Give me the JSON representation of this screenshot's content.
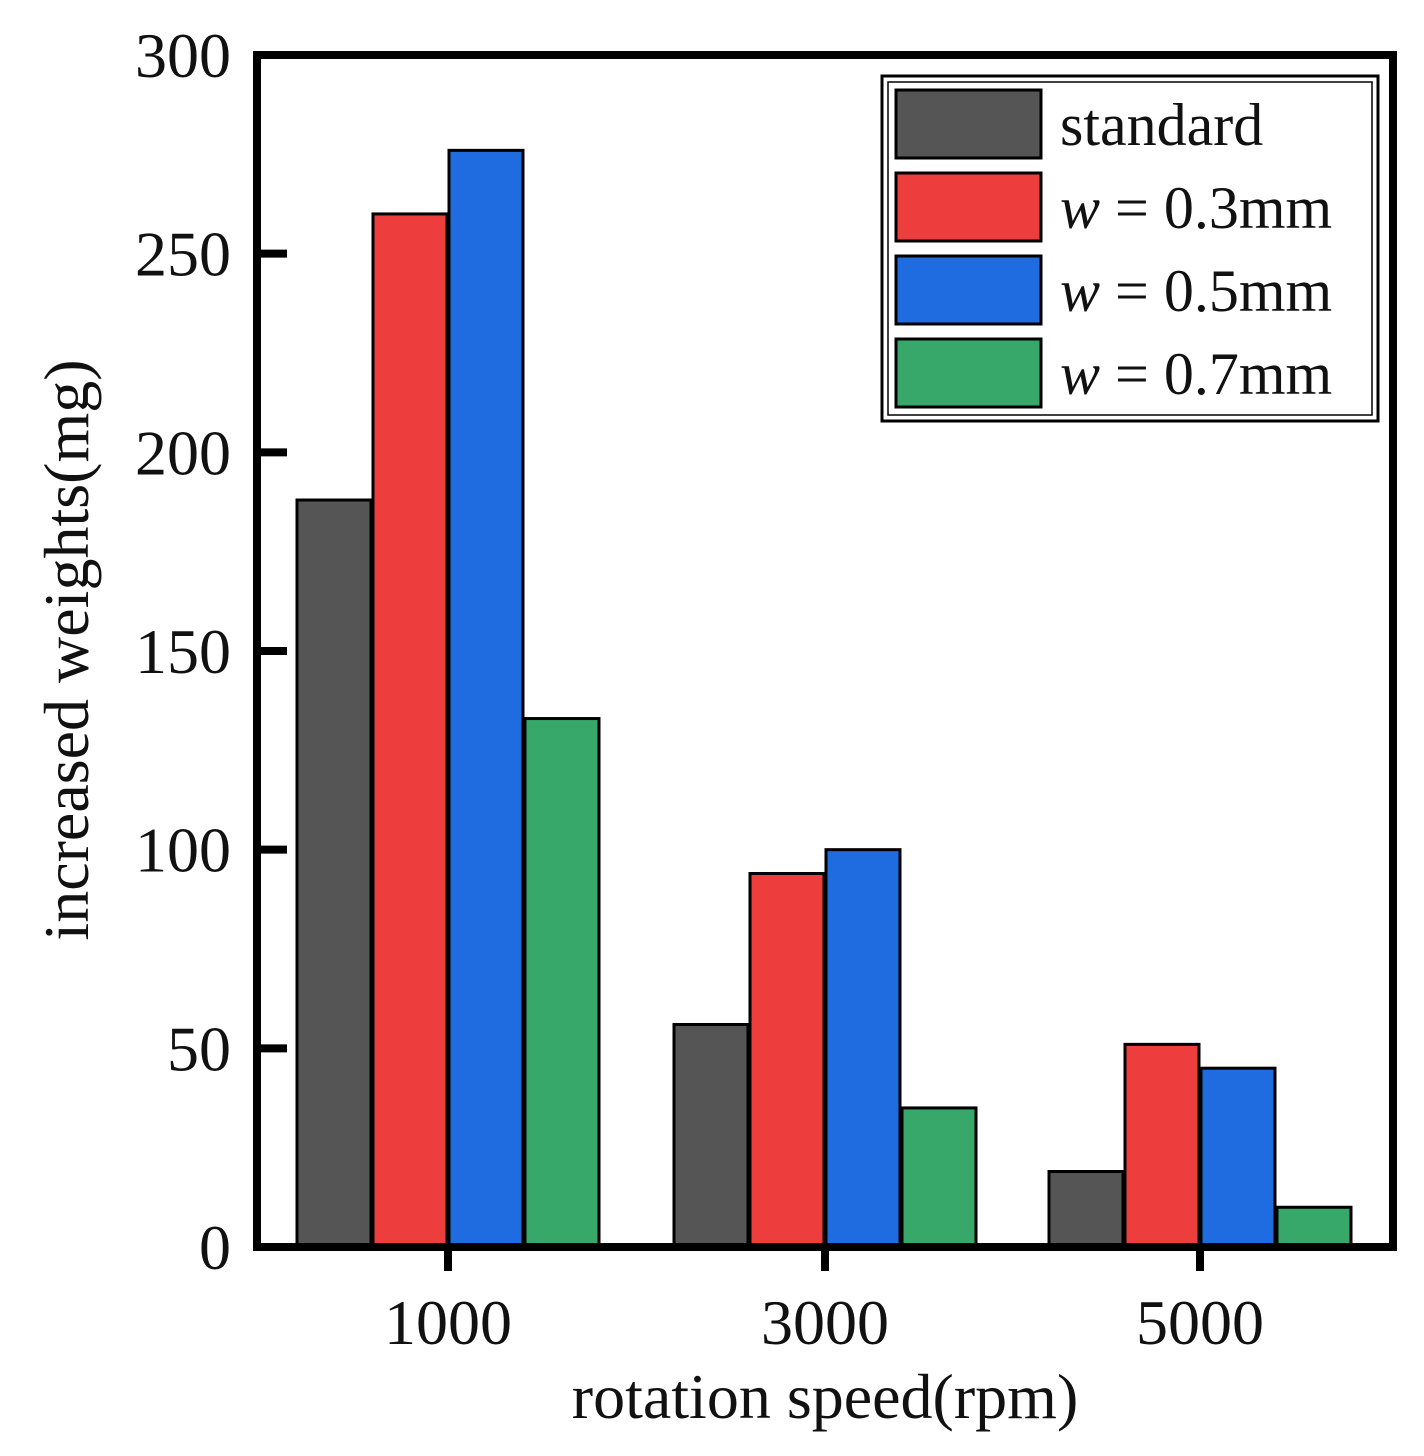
{
  "chart_data": {
    "type": "bar",
    "title": "",
    "xlabel": "rotation speed(rpm)",
    "ylabel": "increased weights(mg)",
    "categories": [
      "1000",
      "3000",
      "5000"
    ],
    "ylim": [
      0,
      300
    ],
    "yticks": [
      0,
      50,
      100,
      150,
      200,
      250,
      300
    ],
    "grid": false,
    "legend_position": "top-right",
    "series": [
      {
        "name": "standard",
        "name_var": "",
        "name_rest": "standard",
        "color": "#555555",
        "values": [
          188,
          56,
          19
        ]
      },
      {
        "name": "w = 0.3mm",
        "name_var": "w",
        "name_rest": " = 0.3mm",
        "color": "#ee3d3d",
        "values": [
          260,
          94,
          51
        ]
      },
      {
        "name": "w = 0.5mm",
        "name_var": "w",
        "name_rest": " = 0.5mm",
        "color": "#1e6ce0",
        "values": [
          276,
          100,
          45
        ]
      },
      {
        "name": "w = 0.7mm",
        "name_var": "w",
        "name_rest": " = 0.7mm",
        "color": "#37a86a",
        "values": [
          133,
          35,
          10
        ]
      }
    ]
  }
}
